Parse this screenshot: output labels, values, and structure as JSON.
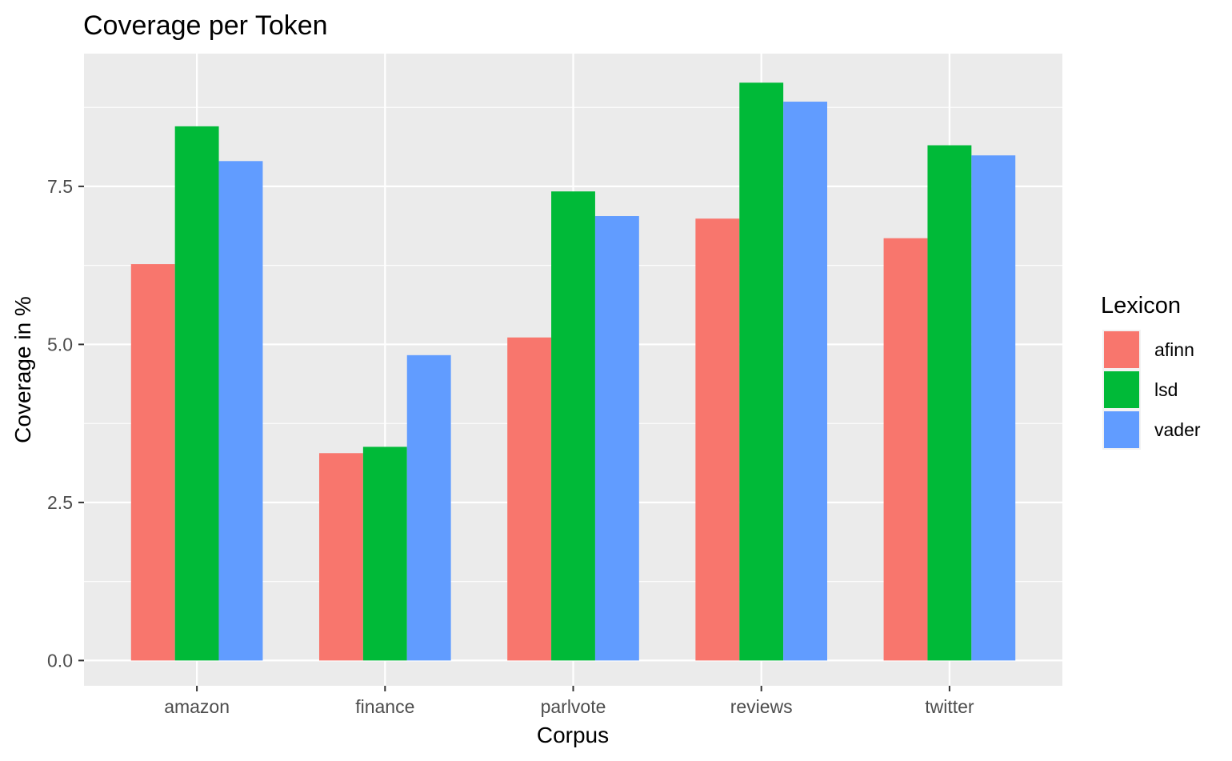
{
  "chart_data": {
    "type": "bar",
    "title": "Coverage per Token",
    "xlabel": "Corpus",
    "ylabel": "Coverage in %",
    "categories": [
      "amazon",
      "finance",
      "parlvote",
      "reviews",
      "twitter"
    ],
    "series": [
      {
        "name": "afinn",
        "color": "#F8766D",
        "values": [
          6.27,
          3.28,
          5.11,
          6.99,
          6.68
        ]
      },
      {
        "name": "lsd",
        "color": "#00BA38",
        "values": [
          8.45,
          3.38,
          7.42,
          9.14,
          8.15
        ]
      },
      {
        "name": "vader",
        "color": "#619CFF",
        "values": [
          7.9,
          4.83,
          7.03,
          8.84,
          7.99
        ]
      }
    ],
    "ylim": [
      -0.4,
      9.6
    ],
    "yticks": [
      0.0,
      2.5,
      5.0,
      7.5
    ],
    "ytick_labels": [
      "0.0",
      "2.5",
      "5.0",
      "7.5"
    ],
    "grid": true,
    "legend": {
      "title": "Lexicon",
      "position": "right"
    },
    "panel_background": "#EBEBEB"
  }
}
